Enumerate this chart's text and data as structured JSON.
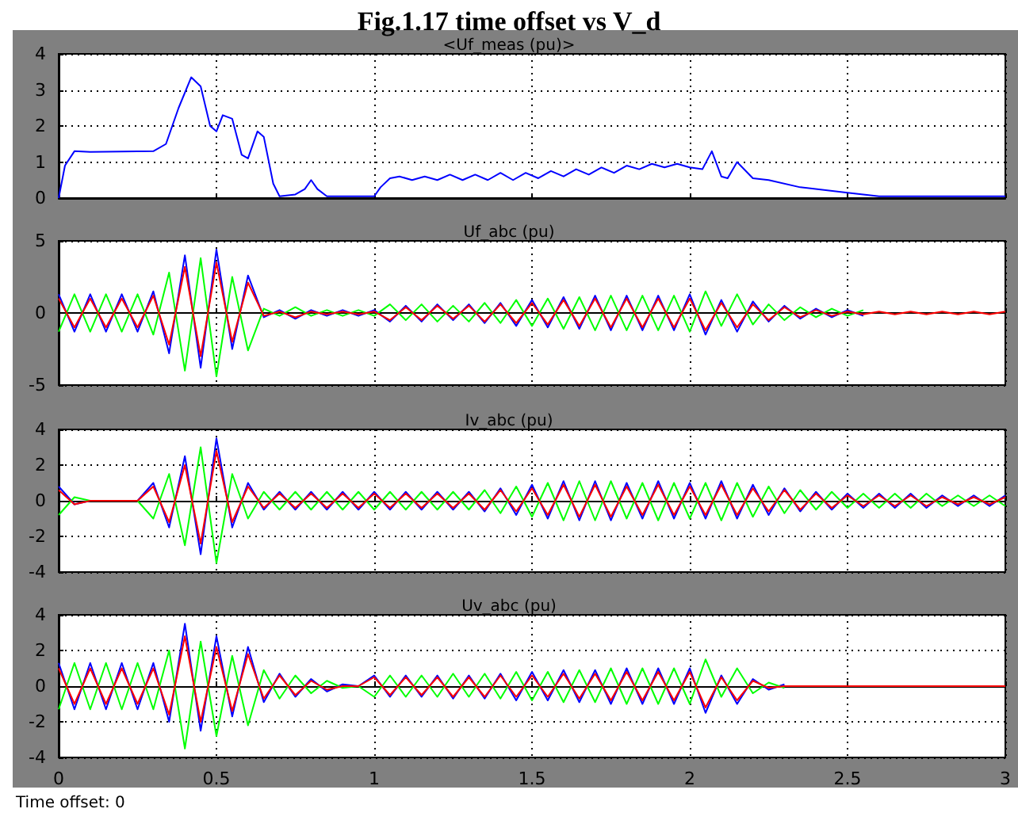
{
  "chart_data": [
    {
      "type": "line",
      "title": "Fig.1.17 time offset vs V_d",
      "subtitle": "<Uf_meas (pu)>",
      "x": [
        0,
        0.02,
        0.05,
        0.1,
        0.3,
        0.34,
        0.38,
        0.42,
        0.45,
        0.48,
        0.5,
        0.52,
        0.55,
        0.58,
        0.6,
        0.63,
        0.65,
        0.68,
        0.7,
        0.75,
        0.78,
        0.8,
        0.82,
        0.85,
        0.9,
        1.0,
        1.02,
        1.05,
        1.08,
        1.12,
        1.16,
        1.2,
        1.24,
        1.28,
        1.32,
        1.36,
        1.4,
        1.44,
        1.48,
        1.52,
        1.56,
        1.6,
        1.64,
        1.68,
        1.72,
        1.76,
        1.8,
        1.84,
        1.88,
        1.92,
        1.96,
        2.0,
        2.04,
        2.07,
        2.1,
        2.12,
        2.15,
        2.2,
        2.25,
        2.35,
        2.5,
        2.6,
        3.0
      ],
      "series": [
        {
          "color": "#0000ff",
          "values": [
            0,
            0.9,
            1.3,
            1.28,
            1.3,
            1.5,
            2.5,
            3.35,
            3.1,
            2.0,
            1.85,
            2.3,
            2.2,
            1.2,
            1.1,
            1.85,
            1.7,
            0.4,
            0.05,
            0.1,
            0.25,
            0.5,
            0.25,
            0.05,
            0.05,
            0.05,
            0.3,
            0.55,
            0.6,
            0.5,
            0.6,
            0.5,
            0.65,
            0.5,
            0.65,
            0.5,
            0.7,
            0.5,
            0.7,
            0.55,
            0.75,
            0.6,
            0.8,
            0.65,
            0.85,
            0.7,
            0.9,
            0.8,
            0.95,
            0.85,
            0.95,
            0.85,
            0.8,
            1.3,
            0.6,
            0.55,
            1.0,
            0.55,
            0.5,
            0.3,
            0.15,
            0.05,
            0.05
          ]
        }
      ],
      "xlim": [
        0,
        3
      ],
      "xticks": [
        0,
        0.5,
        1,
        1.5,
        2,
        2.5,
        3
      ],
      "ylim": [
        0,
        4
      ],
      "yticks": [
        0,
        1,
        2,
        3,
        4
      ],
      "grid": true,
      "tick_labels": "y"
    },
    {
      "type": "line",
      "title": "Uf_abc (pu)",
      "x": [
        0,
        0.05,
        0.1,
        0.15,
        0.2,
        0.25,
        0.3,
        0.35,
        0.4,
        0.45,
        0.5,
        0.55,
        0.6,
        0.65,
        0.7,
        0.75,
        0.8,
        0.85,
        0.9,
        0.95,
        1,
        1.05,
        1.1,
        1.15,
        1.2,
        1.25,
        1.3,
        1.35,
        1.4,
        1.45,
        1.5,
        1.55,
        1.6,
        1.65,
        1.7,
        1.75,
        1.8,
        1.85,
        1.9,
        1.95,
        2,
        2.05,
        2.1,
        2.15,
        2.2,
        2.25,
        2.3,
        2.35,
        2.4,
        2.45,
        2.5,
        2.55,
        2.6,
        2.65,
        2.7,
        2.75,
        2.8,
        2.85,
        2.9,
        2.95,
        3
      ],
      "series": [
        {
          "color": "#0000ff",
          "values": [
            1.3,
            -1.3,
            1.3,
            -1.3,
            1.3,
            -1.3,
            1.5,
            -2.8,
            4.0,
            -3.8,
            4.4,
            -2.5,
            2.6,
            -0.3,
            0.2,
            -0.4,
            0.2,
            -0.2,
            0.2,
            -0.2,
            0.2,
            -0.6,
            0.5,
            -0.6,
            0.6,
            -0.5,
            0.6,
            -0.7,
            0.7,
            -0.9,
            0.9,
            -1.0,
            1.1,
            -1.1,
            1.2,
            -1.2,
            1.2,
            -1.2,
            1.2,
            -1.2,
            1.3,
            -1.5,
            0.9,
            -1.3,
            0.8,
            -0.6,
            0.5,
            -0.4,
            0.3,
            -0.3,
            0.2,
            -0.2,
            null,
            null,
            null,
            null,
            null,
            null,
            null,
            null,
            null
          ]
        },
        {
          "color": "#00ff00",
          "values": [
            -1.3,
            1.3,
            -1.3,
            1.3,
            -1.3,
            1.3,
            -1.5,
            2.8,
            -4.0,
            3.8,
            -4.4,
            2.5,
            -2.6,
            0.3,
            -0.2,
            0.4,
            -0.2,
            0.2,
            -0.2,
            0.2,
            -0.2,
            0.6,
            -0.5,
            0.6,
            -0.6,
            0.5,
            -0.6,
            0.7,
            -0.7,
            0.9,
            -0.9,
            1.0,
            -1.1,
            1.1,
            -1.2,
            1.2,
            -1.2,
            1.2,
            -1.2,
            1.2,
            -1.3,
            1.5,
            -0.9,
            1.3,
            -0.8,
            0.6,
            -0.5,
            0.4,
            -0.3,
            0.3,
            -0.2,
            0.2,
            null,
            null,
            null,
            null,
            null,
            null,
            null,
            null,
            null
          ]
        },
        {
          "color": "#ff0000",
          "values": [
            1.0,
            -1.0,
            1.0,
            -1.0,
            1.0,
            -1.0,
            1.2,
            -2.2,
            3.2,
            -3.0,
            3.5,
            -2.0,
            2.1,
            -0.2,
            0.1,
            -0.3,
            0.1,
            -0.1,
            0.1,
            -0.1,
            0.1,
            -0.5,
            0.4,
            -0.5,
            0.5,
            -0.4,
            0.5,
            -0.6,
            0.6,
            -0.7,
            0.7,
            -0.8,
            0.9,
            -0.9,
            1.0,
            -1.0,
            1.0,
            -1.0,
            1.0,
            -1.0,
            1.0,
            -1.2,
            0.7,
            -1.0,
            0.6,
            -0.5,
            0.4,
            -0.3,
            0.2,
            -0.2,
            0.1,
            -0.1,
            0.1,
            -0.1,
            0.1,
            -0.1,
            0.1,
            -0.1,
            0.1,
            -0.1,
            0.1
          ]
        }
      ],
      "xlim": [
        0,
        3
      ],
      "xticks": [
        0,
        0.5,
        1,
        1.5,
        2,
        2.5,
        3
      ],
      "ylim": [
        -5,
        5
      ],
      "yticks": [
        -5,
        0,
        5
      ],
      "grid": true,
      "tick_labels": "y"
    },
    {
      "type": "line",
      "title": "Iv_abc (pu)",
      "x": [
        0,
        0.05,
        0.1,
        0.15,
        0.2,
        0.25,
        0.3,
        0.35,
        0.4,
        0.45,
        0.5,
        0.55,
        0.6,
        0.65,
        0.7,
        0.75,
        0.8,
        0.85,
        0.9,
        0.95,
        1,
        1.05,
        1.1,
        1.15,
        1.2,
        1.25,
        1.3,
        1.35,
        1.4,
        1.45,
        1.5,
        1.55,
        1.6,
        1.65,
        1.7,
        1.75,
        1.8,
        1.85,
        1.9,
        1.95,
        2,
        2.05,
        2.1,
        2.15,
        2.2,
        2.25,
        2.3,
        2.35,
        2.4,
        2.45,
        2.5,
        2.55,
        2.6,
        2.65,
        2.7,
        2.75,
        2.8,
        2.85,
        2.9,
        2.95,
        3
      ],
      "series": [
        {
          "color": "#0000ff",
          "values": [
            0.8,
            -0.2,
            0,
            0,
            0,
            0,
            1.0,
            -1.5,
            2.5,
            -3.0,
            3.5,
            -1.5,
            1.0,
            -0.5,
            0.5,
            -0.5,
            0.5,
            -0.5,
            0.5,
            -0.5,
            0.5,
            -0.5,
            0.5,
            -0.5,
            0.5,
            -0.5,
            0.5,
            -0.6,
            0.7,
            -0.8,
            0.9,
            -1.0,
            1.1,
            -1.1,
            1.1,
            -1.1,
            1.0,
            -1.0,
            1.1,
            -1.0,
            1.0,
            -1.0,
            1.1,
            -1.0,
            0.9,
            -0.8,
            0.7,
            -0.6,
            0.5,
            -0.5,
            0.4,
            -0.4,
            0.4,
            -0.4,
            0.4,
            -0.4,
            0.3,
            -0.3,
            0.3,
            -0.3,
            0.3
          ]
        },
        {
          "color": "#00ff00",
          "values": [
            -0.8,
            0.2,
            0,
            0,
            0,
            0,
            -1.0,
            1.5,
            -2.5,
            3.0,
            -3.5,
            1.5,
            -1.0,
            0.5,
            -0.5,
            0.5,
            -0.5,
            0.5,
            -0.5,
            0.5,
            -0.5,
            0.5,
            -0.5,
            0.5,
            -0.5,
            0.5,
            -0.5,
            0.6,
            -0.7,
            0.8,
            -0.9,
            1.0,
            -1.1,
            1.1,
            -1.1,
            1.1,
            -1.0,
            1.0,
            -1.1,
            1.0,
            -1.0,
            1.0,
            -1.1,
            1.0,
            -0.9,
            0.8,
            -0.7,
            0.6,
            -0.5,
            0.5,
            -0.4,
            0.4,
            -0.4,
            0.4,
            -0.4,
            0.4,
            -0.3,
            0.3,
            -0.3,
            0.3,
            -0.3
          ]
        },
        {
          "color": "#ff0000",
          "values": [
            0.6,
            -0.2,
            0,
            0,
            0,
            0,
            0.8,
            -1.2,
            2.0,
            -2.4,
            2.8,
            -1.2,
            0.8,
            -0.4,
            0.4,
            -0.4,
            0.4,
            -0.4,
            0.4,
            -0.4,
            0.4,
            -0.4,
            0.4,
            -0.4,
            0.4,
            -0.4,
            0.4,
            -0.5,
            0.6,
            -0.6,
            0.7,
            -0.8,
            0.9,
            -0.9,
            0.9,
            -0.9,
            0.8,
            -0.8,
            0.9,
            -0.8,
            0.8,
            -0.8,
            0.9,
            -0.8,
            0.7,
            -0.6,
            0.6,
            -0.5,
            0.4,
            -0.4,
            0.3,
            -0.3,
            0.3,
            -0.3,
            0.3,
            -0.3,
            0.2,
            -0.2,
            0.2,
            -0.2,
            0.2
          ]
        }
      ],
      "xlim": [
        0,
        3
      ],
      "xticks": [
        0,
        0.5,
        1,
        1.5,
        2,
        2.5,
        3
      ],
      "ylim": [
        -4,
        4
      ],
      "yticks": [
        -4,
        -2,
        0,
        2,
        4
      ],
      "grid": true,
      "tick_labels": "y"
    },
    {
      "type": "line",
      "title": "Uv_abc (pu)",
      "annotations": [
        "Time offset: 0"
      ],
      "x": [
        0,
        0.05,
        0.1,
        0.15,
        0.2,
        0.25,
        0.3,
        0.35,
        0.4,
        0.45,
        0.5,
        0.55,
        0.6,
        0.65,
        0.7,
        0.75,
        0.8,
        0.85,
        0.9,
        0.95,
        1,
        1.05,
        1.1,
        1.15,
        1.2,
        1.25,
        1.3,
        1.35,
        1.4,
        1.45,
        1.5,
        1.55,
        1.6,
        1.65,
        1.7,
        1.75,
        1.8,
        1.85,
        1.9,
        1.95,
        2,
        2.05,
        2.1,
        2.15,
        2.2,
        2.25,
        2.3,
        2.35,
        2.4,
        2.45,
        2.5,
        2.55,
        2.6,
        2.65,
        2.7,
        2.75,
        2.8,
        2.85,
        2.9,
        2.95,
        3
      ],
      "series": [
        {
          "color": "#0000ff",
          "values": [
            1.3,
            -1.3,
            1.3,
            -1.3,
            1.3,
            -1.3,
            1.3,
            -2.0,
            3.5,
            -2.5,
            2.8,
            -1.7,
            2.2,
            -0.9,
            0.7,
            -0.6,
            0.4,
            -0.3,
            0.1,
            0,
            0.6,
            -0.6,
            0.6,
            -0.6,
            0.6,
            -0.7,
            0.6,
            -0.7,
            0.7,
            -0.8,
            0.8,
            -0.8,
            0.9,
            -0.9,
            0.9,
            -1.0,
            1.0,
            -1.0,
            1.0,
            -1.0,
            1.0,
            -1.5,
            0.6,
            -1.0,
            0.4,
            -0.2,
            0.1,
            null,
            null,
            null,
            null,
            null,
            null,
            null,
            null,
            null,
            null,
            null,
            null,
            null,
            null
          ]
        },
        {
          "color": "#00ff00",
          "values": [
            -1.3,
            1.3,
            -1.3,
            1.3,
            -1.3,
            1.3,
            -1.3,
            2.0,
            -3.5,
            2.5,
            -2.8,
            1.7,
            -2.2,
            0.9,
            -0.7,
            0.6,
            -0.4,
            0.3,
            -0.1,
            0,
            -0.6,
            0.6,
            -0.6,
            0.6,
            -0.6,
            0.7,
            -0.6,
            0.7,
            -0.7,
            0.8,
            -0.8,
            0.8,
            -0.9,
            0.9,
            -0.9,
            1.0,
            -1.0,
            1.0,
            -1.0,
            1.0,
            -1.0,
            1.5,
            -0.6,
            1.0,
            -0.4,
            0.2,
            -0.1,
            null,
            null,
            null,
            null,
            null,
            null,
            null,
            null,
            null,
            null,
            null,
            null,
            null,
            null
          ]
        },
        {
          "color": "#ff0000",
          "values": [
            1.0,
            -1.0,
            1.0,
            -1.0,
            1.0,
            -1.0,
            1.0,
            -1.6,
            2.8,
            -2.0,
            2.2,
            -1.4,
            1.8,
            -0.7,
            0.6,
            -0.5,
            0.3,
            -0.2,
            0,
            0,
            0.5,
            -0.5,
            0.5,
            -0.5,
            0.5,
            -0.6,
            0.5,
            -0.6,
            0.6,
            -0.6,
            0.6,
            -0.6,
            0.7,
            -0.7,
            0.7,
            -0.8,
            0.8,
            -0.8,
            0.8,
            -0.8,
            0.8,
            -1.2,
            0.5,
            -0.8,
            0.3,
            -0.1,
            0,
            0,
            0,
            0,
            0,
            0,
            0,
            0,
            0,
            0,
            0,
            0,
            0,
            0,
            0
          ]
        }
      ],
      "xlim": [
        0,
        3
      ],
      "xticks": [
        0,
        0.5,
        1,
        1.5,
        2,
        2.5,
        3
      ],
      "ylim": [
        -4,
        4
      ],
      "yticks": [
        -4,
        -2,
        0,
        2,
        4
      ],
      "grid": true
    }
  ]
}
